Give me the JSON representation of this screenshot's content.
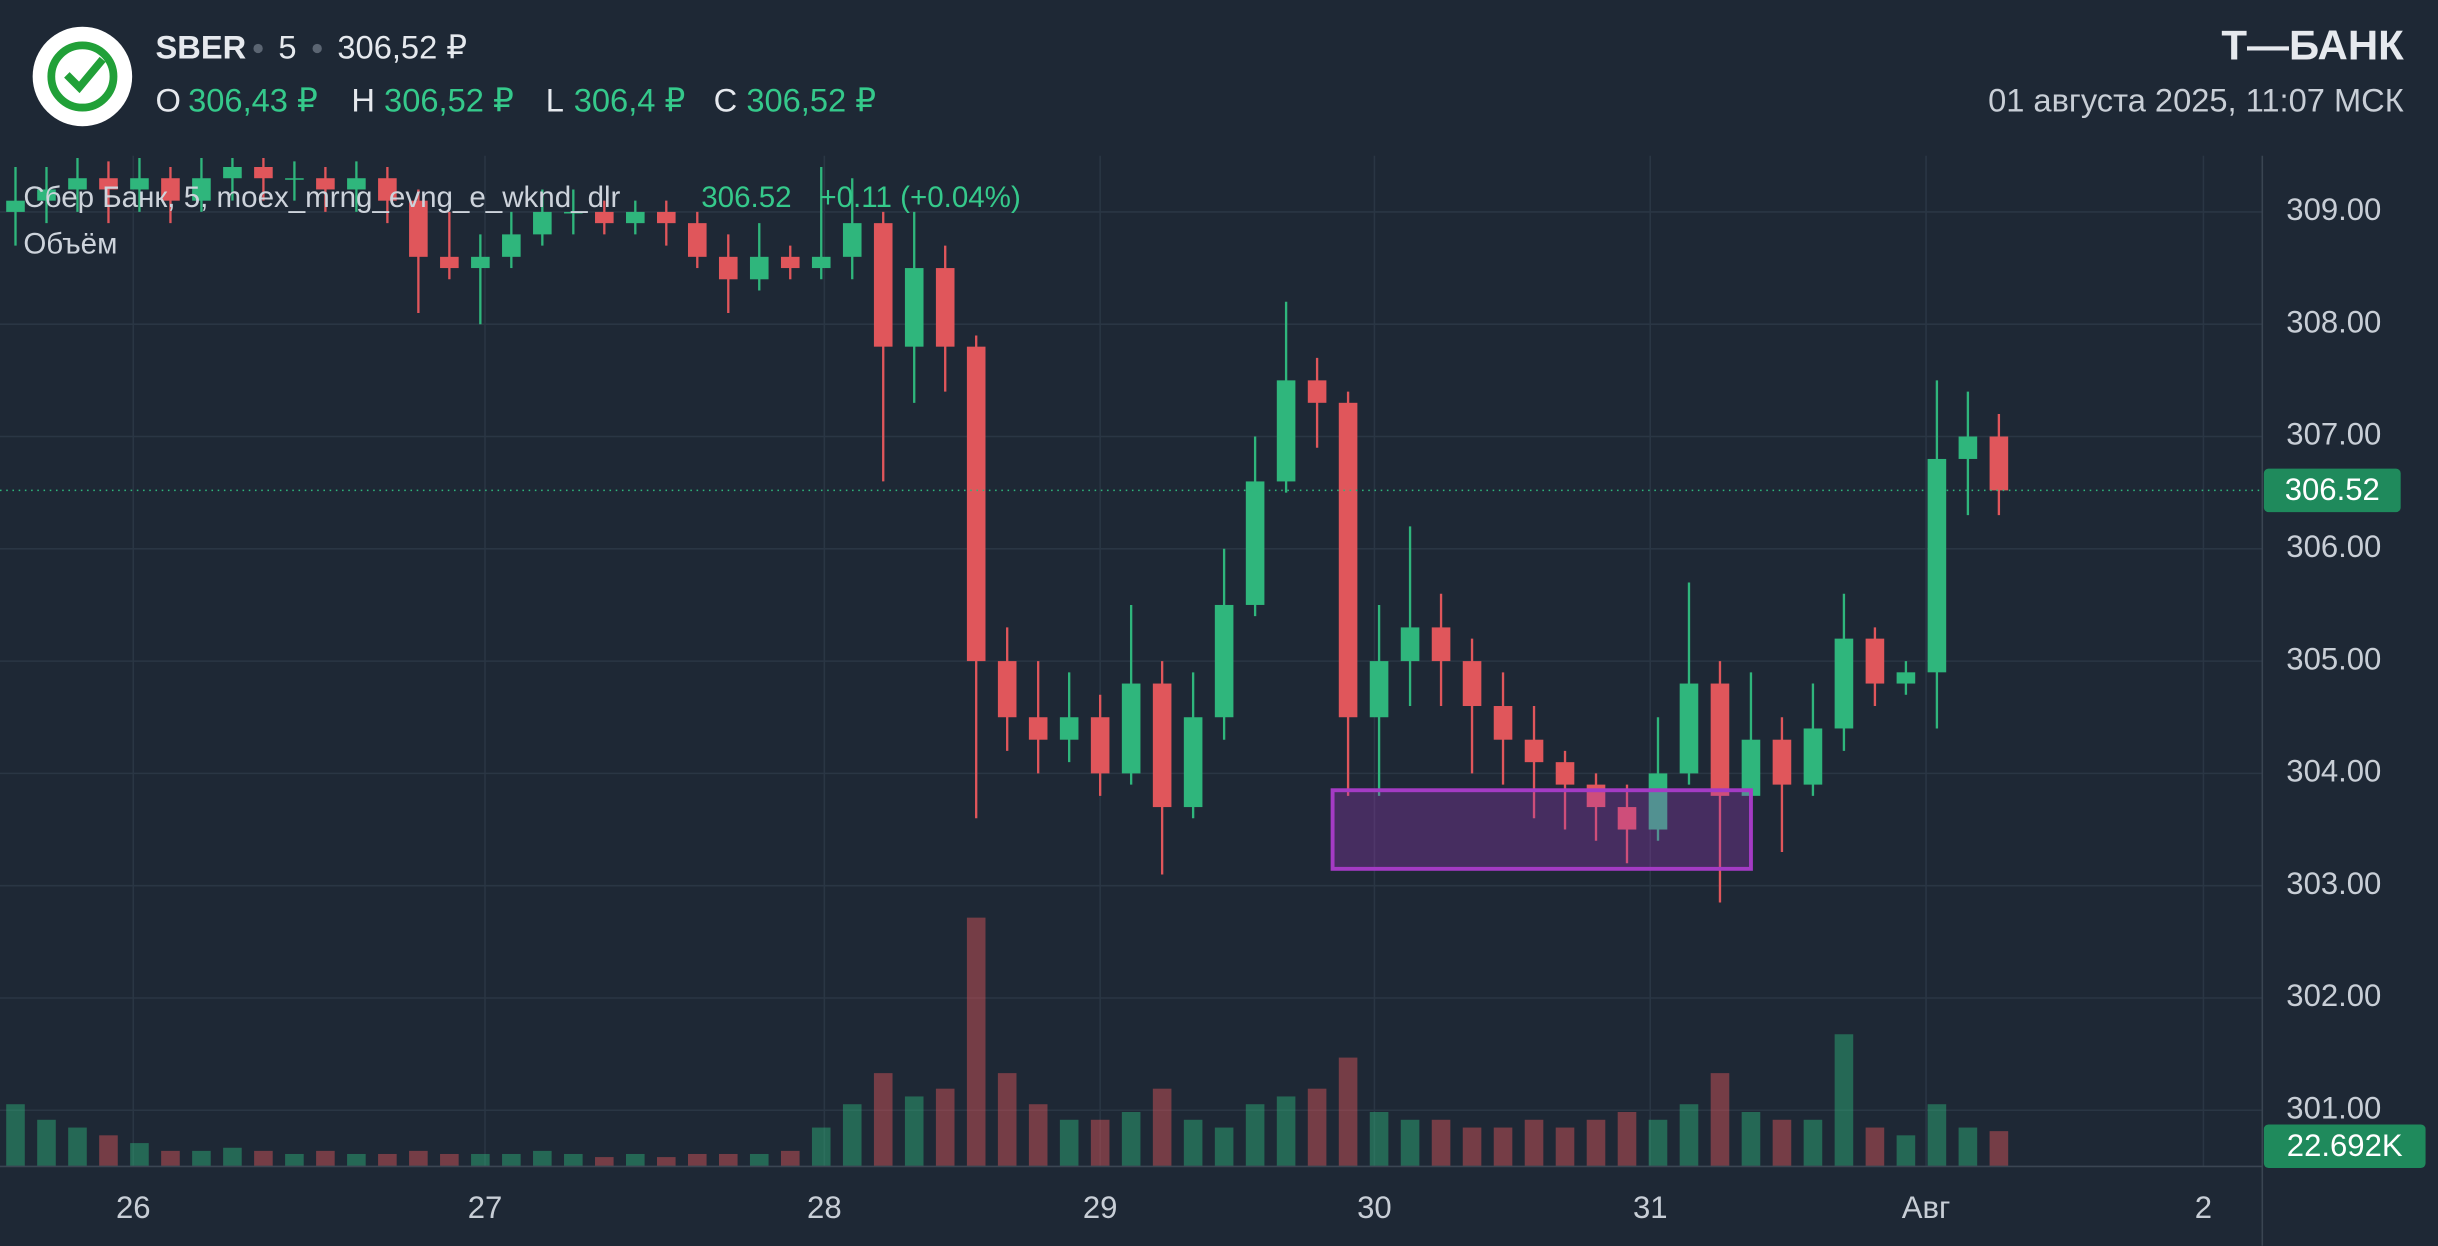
{
  "header": {
    "ticker": "SBER",
    "interval": "5",
    "price": "306,52 ₽",
    "ohlc": [
      {
        "label": "O",
        "value": "306,43 ₽"
      },
      {
        "label": "H",
        "value": "306,52 ₽"
      },
      {
        "label": "L",
        "value": "306,4 ₽"
      },
      {
        "label": "C",
        "value": "306,52 ₽"
      }
    ],
    "brand": "Т—БАНК",
    "datetime": "01 августа 2025, 11:07 МСК"
  },
  "chart_data": {
    "type": "candlestick",
    "legend_title": "Сбер Банк, 5, moex_mrng_evng_e_wknd_dlr",
    "change_label": "+0.11 (+0.04%)",
    "up_color": "#2fb67c",
    "down_color": "#e0565b",
    "grid": true,
    "xlim": [
      0,
      73
    ],
    "xticks": [
      {
        "value": 4.3,
        "label": "26"
      },
      {
        "value": 15.65,
        "label": "27"
      },
      {
        "value": 26.6,
        "label": "28"
      },
      {
        "value": 35.5,
        "label": "29"
      },
      {
        "value": 44.35,
        "label": "30"
      },
      {
        "value": 53.25,
        "label": "31"
      },
      {
        "value": 62.15,
        "label": "Авг"
      },
      {
        "value": 71.1,
        "label": "2"
      }
    ],
    "ylim": [
      300.5,
      309.5
    ],
    "yticks": [
      {
        "value": 301,
        "label": "301.00"
      },
      {
        "value": 302,
        "label": "302.00"
      },
      {
        "value": 303,
        "label": "303.00"
      },
      {
        "value": 304,
        "label": "304.00"
      },
      {
        "value": 305,
        "label": "305.00"
      },
      {
        "value": 306,
        "label": "306.00"
      },
      {
        "value": 307,
        "label": "307.00"
      },
      {
        "value": 308,
        "label": "308.00"
      },
      {
        "value": 309,
        "label": "309.00"
      }
    ],
    "open": [
      309.0,
      309.1,
      309.2,
      309.3,
      309.2,
      309.3,
      309.1,
      309.3,
      309.4,
      309.3,
      309.3,
      309.2,
      309.3,
      309.1,
      308.6,
      308.5,
      308.6,
      308.8,
      309.0,
      309.0,
      308.9,
      309.0,
      308.9,
      308.6,
      308.4,
      308.6,
      308.5,
      308.6,
      308.9,
      307.8,
      308.5,
      307.8,
      305.0,
      304.5,
      304.3,
      304.5,
      304.0,
      304.8,
      303.7,
      304.5,
      305.5,
      306.6,
      307.5,
      307.3,
      304.5,
      305.0,
      305.3,
      305.0,
      304.6,
      304.3,
      304.1,
      303.9,
      303.7,
      303.5,
      304.0,
      304.8,
      303.8,
      304.3,
      303.9,
      304.4,
      305.2,
      304.8,
      304.9,
      306.8,
      307.0
    ],
    "high": [
      309.4,
      309.4,
      309.48,
      309.45,
      309.48,
      309.4,
      309.48,
      309.48,
      309.48,
      309.45,
      309.4,
      309.45,
      309.4,
      309.2,
      309.0,
      308.8,
      309.0,
      309.2,
      309.2,
      309.1,
      309.1,
      309.1,
      309.0,
      308.8,
      308.9,
      308.7,
      309.4,
      309.3,
      309.0,
      309.0,
      308.7,
      307.9,
      305.3,
      305.0,
      304.9,
      304.7,
      305.5,
      305.0,
      304.9,
      306.0,
      307.0,
      308.2,
      307.7,
      307.4,
      305.5,
      306.2,
      305.6,
      305.2,
      304.9,
      304.6,
      304.2,
      304.0,
      303.9,
      304.5,
      305.7,
      305.0,
      304.9,
      304.5,
      304.8,
      305.6,
      305.3,
      305.0,
      307.5,
      307.4,
      307.2
    ],
    "low": [
      308.7,
      308.9,
      309.0,
      308.9,
      309.0,
      308.9,
      309.0,
      309.1,
      309.1,
      309.1,
      309.0,
      309.0,
      308.9,
      308.1,
      308.4,
      308.0,
      308.5,
      308.7,
      308.8,
      308.8,
      308.8,
      308.7,
      308.5,
      308.1,
      308.3,
      308.4,
      308.4,
      308.4,
      306.6,
      307.3,
      307.4,
      303.6,
      304.2,
      304.0,
      304.1,
      303.8,
      303.9,
      303.1,
      303.6,
      304.3,
      305.4,
      306.5,
      306.9,
      303.8,
      303.8,
      304.6,
      304.6,
      304.0,
      303.9,
      303.6,
      303.5,
      303.4,
      303.2,
      303.4,
      303.9,
      302.85,
      303.6,
      303.3,
      303.8,
      304.2,
      304.6,
      304.7,
      304.4,
      306.3,
      306.3
    ],
    "close": [
      309.1,
      309.2,
      309.3,
      309.2,
      309.3,
      309.1,
      309.3,
      309.4,
      309.3,
      309.3,
      309.2,
      309.3,
      309.1,
      308.6,
      308.5,
      308.6,
      308.8,
      309.0,
      309.0,
      308.9,
      309.0,
      308.9,
      308.6,
      308.4,
      308.6,
      308.5,
      308.6,
      308.9,
      307.8,
      308.5,
      307.8,
      305.0,
      304.5,
      304.3,
      304.5,
      304.0,
      304.8,
      303.7,
      304.5,
      305.5,
      306.6,
      307.5,
      307.3,
      304.5,
      305.0,
      305.3,
      305.0,
      304.6,
      304.3,
      304.1,
      303.9,
      303.7,
      303.5,
      304.0,
      304.8,
      303.8,
      304.3,
      303.9,
      304.4,
      305.2,
      304.8,
      304.9,
      306.8,
      307.0,
      306.52
    ],
    "last_price": 306.52,
    "volume": {
      "name": "Объём",
      "last_label": "22.692K",
      "values": [
        40000,
        30000,
        25000,
        20000,
        15000,
        10000,
        10000,
        12000,
        10000,
        8000,
        10000,
        8000,
        8000,
        10000,
        8000,
        8000,
        8000,
        10000,
        8000,
        6000,
        8000,
        6000,
        8000,
        8000,
        8000,
        10000,
        25000,
        40000,
        60000,
        45000,
        50000,
        160000,
        60000,
        40000,
        30000,
        30000,
        35000,
        50000,
        30000,
        25000,
        40000,
        45000,
        50000,
        70000,
        35000,
        30000,
        30000,
        25000,
        25000,
        30000,
        25000,
        30000,
        35000,
        30000,
        40000,
        60000,
        35000,
        30000,
        30000,
        85000,
        25000,
        20000,
        40000,
        25000,
        22692
      ]
    },
    "box": {
      "x": [
        43,
        56.5
      ],
      "y": [
        303.15,
        303.85
      ],
      "color": "#a43bc4"
    }
  }
}
